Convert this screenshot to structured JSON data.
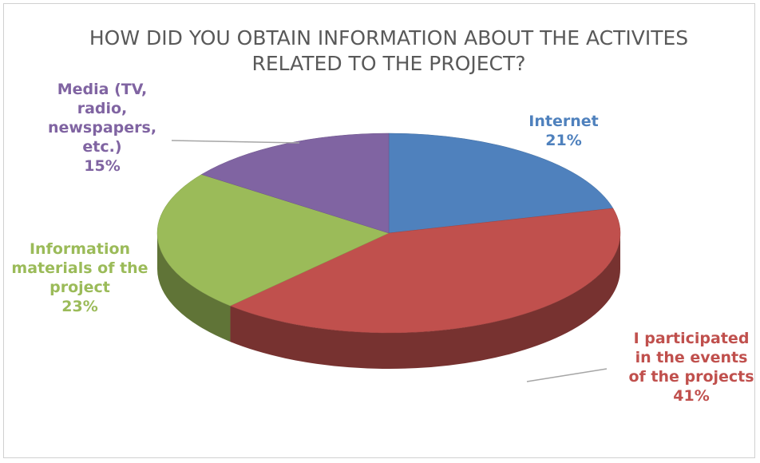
{
  "chart_data": {
    "type": "pie",
    "title": "HOW DID YOU OBTAIN INFORMATION ABOUT THE ACTIVITES RELATED TO THE PROJECT?",
    "categories": [
      "Internet",
      "I participated in the events of the projects",
      "Information materials of the project",
      "Media (TV, radio, newspapers, etc.)"
    ],
    "values": [
      21,
      41,
      23,
      15
    ],
    "value_labels": [
      "21%",
      "41%",
      "23%",
      "15%"
    ],
    "colors": [
      "#4f81bd",
      "#c0504d",
      "#9bbb59",
      "#8064a2"
    ]
  }
}
